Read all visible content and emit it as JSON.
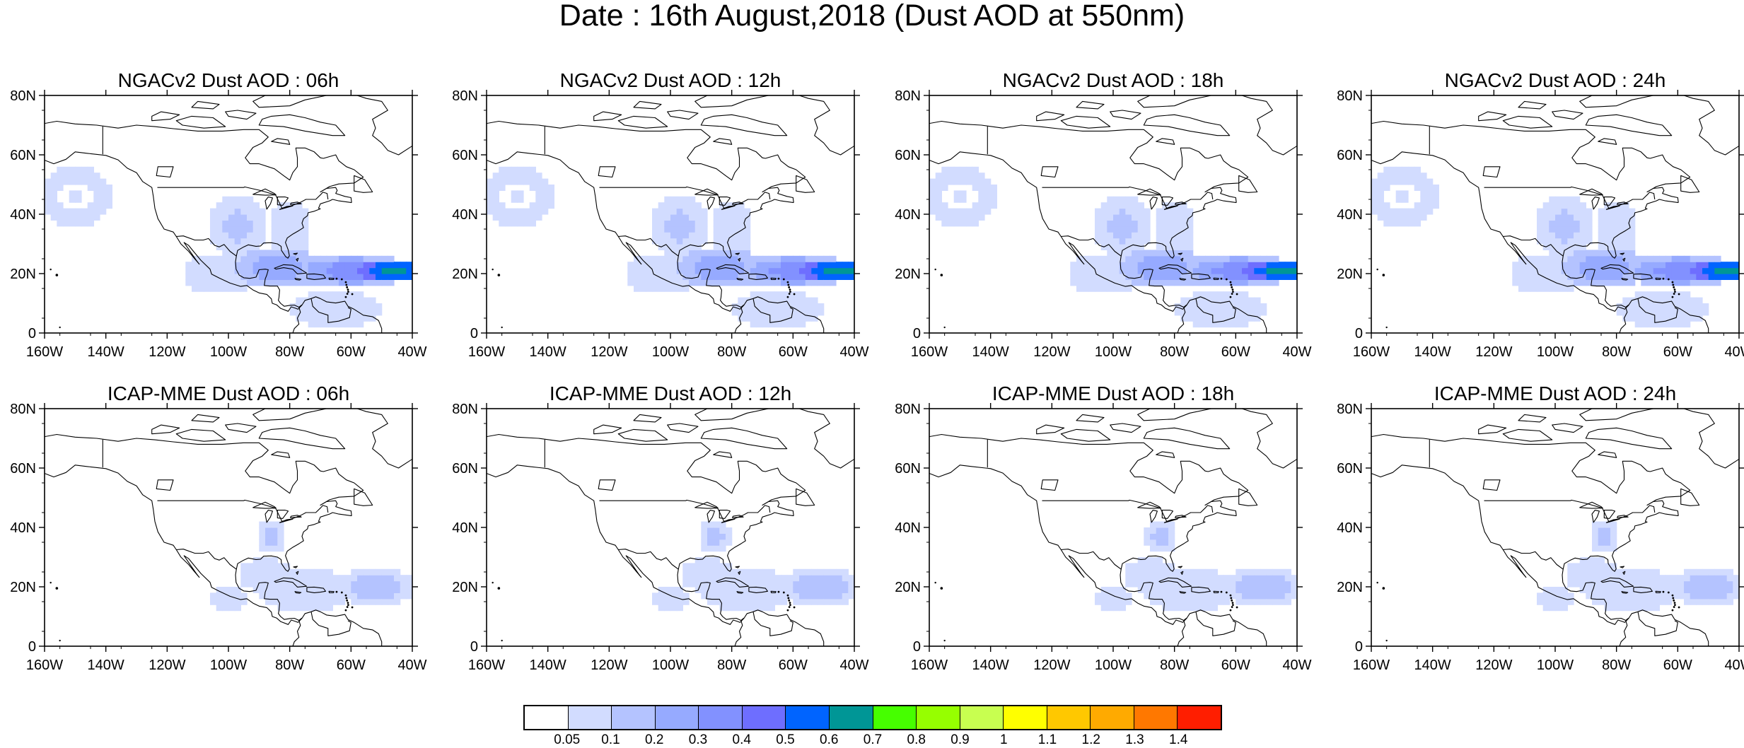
{
  "title": "Date : 16th August,2018 (Dust AOD at 550nm)",
  "panels": [
    {
      "title": "NGACv2 Dust AOD : 06h",
      "model": "ngac",
      "hour": 6
    },
    {
      "title": "NGACv2 Dust AOD : 12h",
      "model": "ngac",
      "hour": 12
    },
    {
      "title": "NGACv2 Dust AOD : 18h",
      "model": "ngac",
      "hour": 18
    },
    {
      "title": "NGACv2 Dust AOD : 24h",
      "model": "ngac",
      "hour": 24
    },
    {
      "title": "ICAP-MME Dust AOD : 06h",
      "model": "icap",
      "hour": 6
    },
    {
      "title": "ICAP-MME Dust AOD : 12h",
      "model": "icap",
      "hour": 12
    },
    {
      "title": "ICAP-MME Dust AOD : 18h",
      "model": "icap",
      "hour": 18
    },
    {
      "title": "ICAP-MME Dust AOD : 24h",
      "model": "icap",
      "hour": 24
    }
  ],
  "map": {
    "lon_range": [
      -160,
      -40
    ],
    "lat_range": [
      0,
      80
    ],
    "lon_ticks": [
      "160W",
      "140W",
      "120W",
      "100W",
      "80W",
      "60W",
      "40W"
    ],
    "lat_ticks": [
      "0",
      "20N",
      "40N",
      "60N",
      "80N"
    ]
  },
  "colorbar": {
    "labels": [
      "0.05",
      "0.1",
      "0.2",
      "0.3",
      "0.4",
      "0.5",
      "0.6",
      "0.7",
      "0.8",
      "0.9",
      "1",
      "1.1",
      "1.2",
      "1.3",
      "1.4"
    ],
    "colors": [
      "#ffffff",
      "#d2dcff",
      "#b4c3ff",
      "#96aaff",
      "#8291ff",
      "#6e6eff",
      "#0064ff",
      "#009696",
      "#46ff00",
      "#96ff00",
      "#c8ff50",
      "#ffff00",
      "#ffc800",
      "#ffaa00",
      "#ff7800",
      "#ff1e00"
    ]
  }
}
